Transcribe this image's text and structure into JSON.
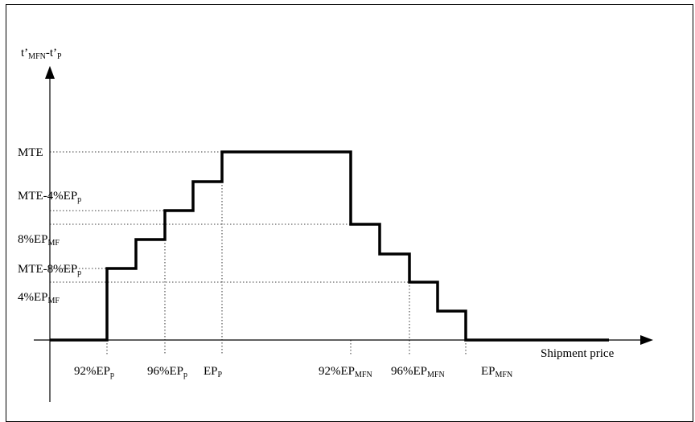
{
  "y_axis": {
    "title_main": "t’",
    "title_sub1": "MFN",
    "title_mid": "-t’",
    "title_sub2": "P"
  },
  "x_axis": {
    "title": "Shipment price"
  },
  "y_labels": [
    {
      "main": "MTE",
      "sub": ""
    },
    {
      "main": "MTE-4%EP",
      "sub": "p"
    },
    {
      "main": "8%EP",
      "sub": "MF"
    },
    {
      "main": "MTE-8%EP",
      "sub": "p"
    },
    {
      "main": "4%EP",
      "sub": "MF"
    }
  ],
  "x_labels": [
    {
      "main": "92%EP",
      "sub": "p"
    },
    {
      "main": "96%EP",
      "sub": "p"
    },
    {
      "main": "EP",
      "sub": "P"
    },
    {
      "main": "92%EP",
      "sub": "MFN"
    },
    {
      "main": "96%EP",
      "sub": "MFN"
    },
    {
      "main": "EP",
      "sub": "MFN"
    }
  ],
  "step_function": {
    "x_levels": [
      "below 92%EPp",
      "92%EPp",
      "(unlabeled)",
      "96%EPp",
      "(unlabeled)",
      "EPP",
      "92%EPMFN",
      "(unlabeled)",
      "96%EPMFN",
      "(unlabeled)",
      "EPMFN"
    ],
    "shape": "stepwise rise from 0 at 92%EPp to MTE at EPP, flat until 92%EPMFN, stepwise fall to 0 at EPMFN"
  },
  "colors": {
    "line": "#000000",
    "background": "#ffffff"
  }
}
